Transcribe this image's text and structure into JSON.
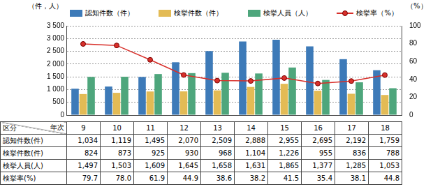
{
  "chart_data": {
    "type": "bar",
    "ylabel": "（件，人）",
    "y2label": "（%）",
    "categories": [
      "9",
      "10",
      "11",
      "12",
      "13",
      "14",
      "15",
      "16",
      "17",
      "18"
    ],
    "series": [
      {
        "name": "認知件数（件）",
        "color": "#3d7ab8",
        "values": [
          1034,
          1119,
          1495,
          2070,
          2509,
          2888,
          2955,
          2695,
          2192,
          1759
        ],
        "value_labels": [
          "1,034",
          "1,119",
          "1,495",
          "2,070",
          "2,509",
          "2,888",
          "2,955",
          "2,695",
          "2,192",
          "1,759"
        ]
      },
      {
        "name": "検挙件数（件）",
        "color": "#e3bb55",
        "values": [
          824,
          873,
          925,
          930,
          968,
          1104,
          1226,
          955,
          836,
          788
        ],
        "value_labels": [
          "824",
          "873",
          "925",
          "930",
          "968",
          "1,104",
          "1,226",
          "955",
          "836",
          "788"
        ]
      },
      {
        "name": "検挙人員（人）",
        "color": "#4ea67c",
        "values": [
          1497,
          1503,
          1609,
          1645,
          1658,
          1631,
          1865,
          1377,
          1285,
          1053
        ],
        "value_labels": [
          "1,497",
          "1,503",
          "1,609",
          "1,645",
          "1,658",
          "1,631",
          "1,865",
          "1,377",
          "1,285",
          "1,053"
        ]
      },
      {
        "name": "検挙率（%）",
        "color": "#d8302b",
        "type": "line",
        "axis": "y2",
        "marker": "circle",
        "values": [
          79.7,
          78.0,
          61.9,
          44.9,
          38.6,
          38.2,
          41.5,
          35.4,
          38.1,
          44.8
        ],
        "value_labels": [
          "79.7",
          "78.0",
          "61.9",
          "44.9",
          "38.6",
          "38.2",
          "41.5",
          "35.4",
          "38.1",
          "44.8"
        ]
      }
    ],
    "ylim": [
      0,
      3500
    ],
    "yticks": [
      0,
      500,
      {
        "value": 1000,
        "label": "1 000"
      },
      {
        "value": 1500,
        "label": "1 500"
      },
      {
        "value": 2000,
        "label": "2 000"
      },
      {
        "value": 2500,
        "label": "2 500"
      },
      {
        "value": 3000,
        "label": "3 000"
      },
      {
        "value": 3500,
        "label": "3 500"
      }
    ],
    "y2lim": [
      0,
      100
    ],
    "y2ticks": [
      0,
      20,
      40,
      60,
      80,
      100
    ],
    "grid": true,
    "table": {
      "corner": [
        "区分",
        "年次"
      ],
      "row_labels": [
        "認知件数(件)",
        "検挙件数(件)",
        "検挙人員(人)",
        "検挙率(%)"
      ]
    }
  }
}
